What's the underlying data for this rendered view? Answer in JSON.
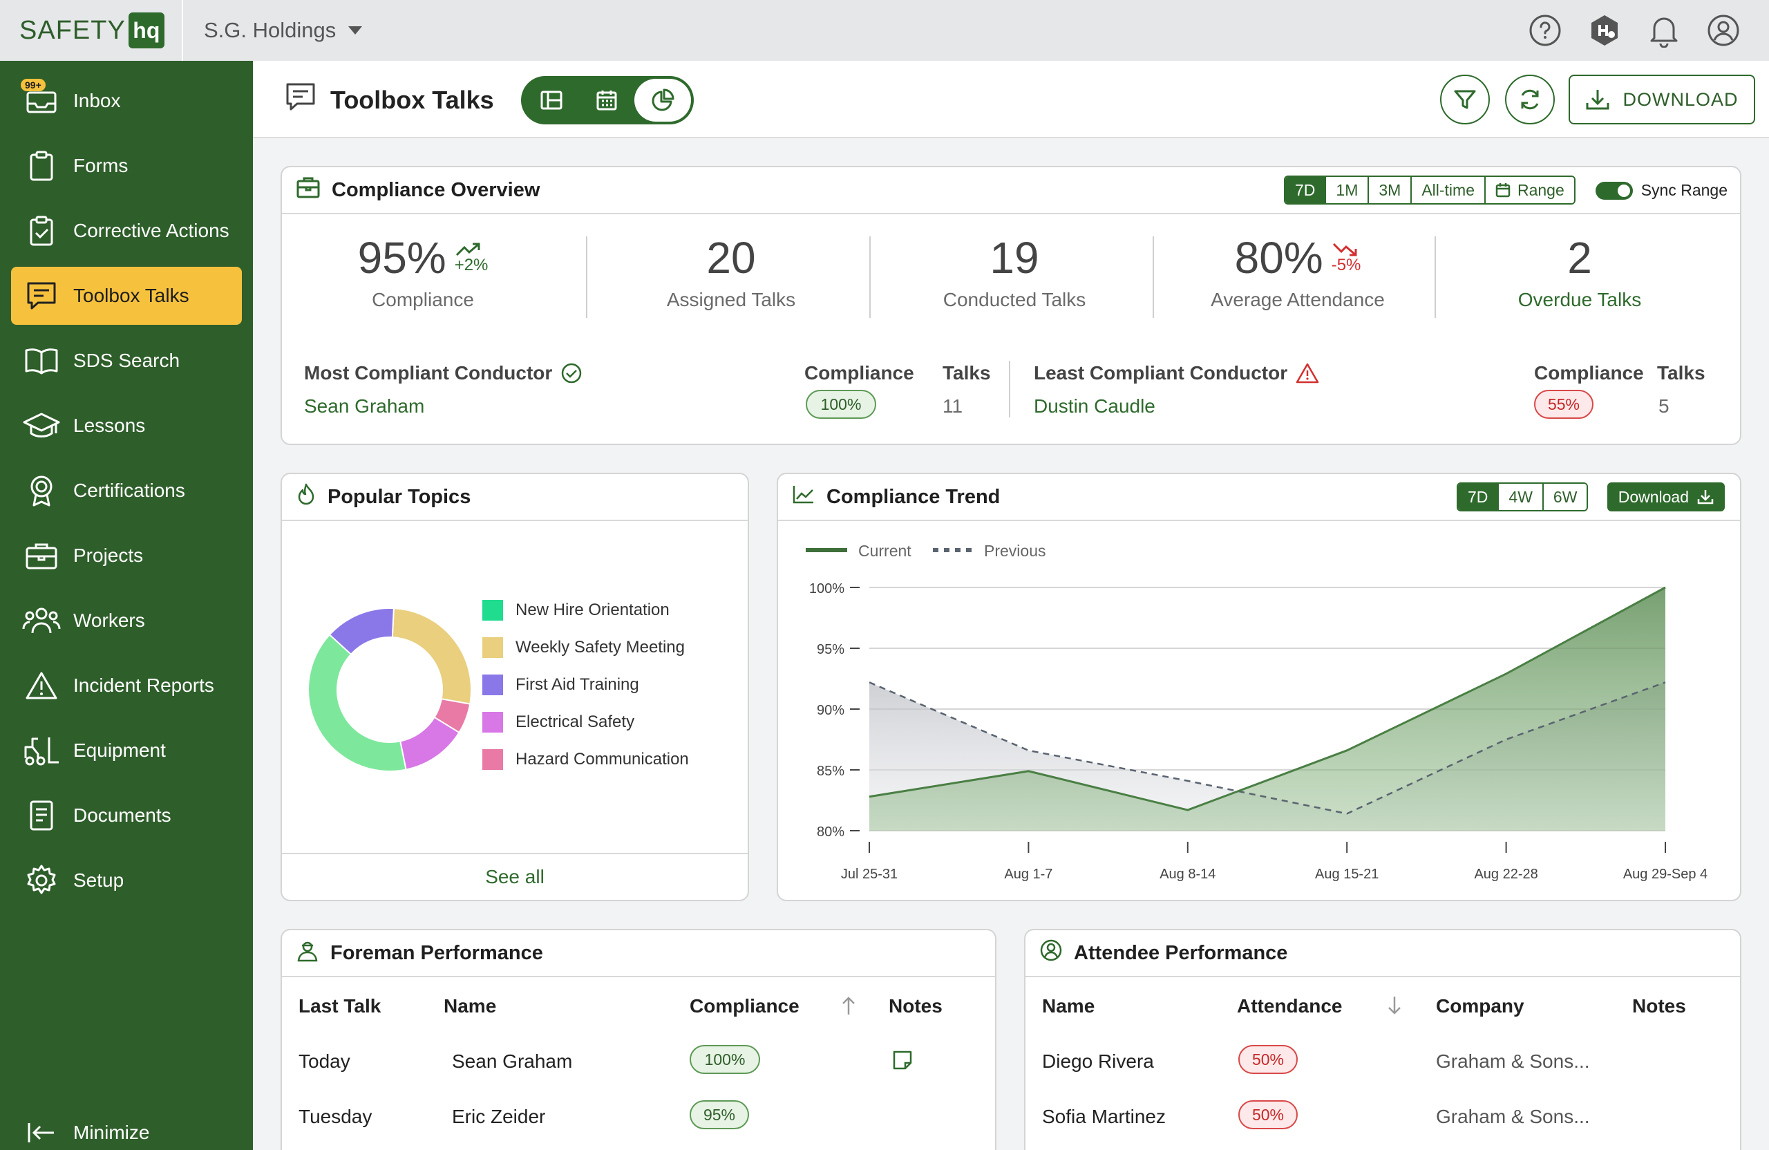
{
  "brand": {
    "logo_text": "SAFETY",
    "logo_mark": "hq"
  },
  "org": {
    "name": "S.G. Holdings"
  },
  "top_icons": [
    "help-icon",
    "hex-logo-icon",
    "bell-icon",
    "user-icon"
  ],
  "sidebar": {
    "inbox_badge": "99+",
    "items": [
      {
        "label": "Inbox",
        "icon": "inbox-icon"
      },
      {
        "label": "Forms",
        "icon": "clipboard-icon"
      },
      {
        "label": "Corrective Actions",
        "icon": "clipboard-check-icon"
      },
      {
        "label": "Toolbox Talks",
        "icon": "chat-icon",
        "active": true
      },
      {
        "label": "SDS Search",
        "icon": "book-icon"
      },
      {
        "label": "Lessons",
        "icon": "graduation-cap-icon"
      },
      {
        "label": "Certifications",
        "icon": "award-icon"
      },
      {
        "label": "Projects",
        "icon": "briefcase-icon"
      },
      {
        "label": "Workers",
        "icon": "people-icon"
      },
      {
        "label": "Incident Reports",
        "icon": "warning-icon"
      },
      {
        "label": "Equipment",
        "icon": "forklift-icon"
      },
      {
        "label": "Documents",
        "icon": "document-icon"
      },
      {
        "label": "Setup",
        "icon": "gear-icon"
      }
    ],
    "minimize_label": "Minimize"
  },
  "page": {
    "title": "Toolbox Talks",
    "download_label": "DOWNLOAD"
  },
  "compliance_overview": {
    "title": "Compliance Overview",
    "ranges": [
      "7D",
      "1M",
      "3M",
      "All-time",
      "Range"
    ],
    "active_range": "7D",
    "sync_label": "Sync Range",
    "kpis": [
      {
        "value": "95%",
        "delta": "+2%",
        "trend": "up",
        "label": "Compliance"
      },
      {
        "value": "20",
        "label": "Assigned Talks"
      },
      {
        "value": "19",
        "label": "Conducted Talks"
      },
      {
        "value": "80%",
        "delta": "-5%",
        "trend": "down",
        "label": "Average Attendance"
      },
      {
        "value": "2",
        "label": "Overdue Talks"
      }
    ],
    "most": {
      "label": "Most Compliant Conductor",
      "name": "Sean Graham",
      "compliance_label": "Compliance",
      "compliance": "100%",
      "talks_label": "Talks",
      "talks": "11"
    },
    "least": {
      "label": "Least Compliant Conductor",
      "name": "Dustin Caudle",
      "compliance_label": "Compliance",
      "compliance": "55%",
      "talks_label": "Talks",
      "talks": "5"
    }
  },
  "popular_topics": {
    "title": "Popular Topics",
    "see_all": "See all",
    "legend": [
      {
        "label": "New Hire Orientation",
        "color": "#1fdc8f"
      },
      {
        "label": "Weekly Safety Meeting",
        "color": "#e9cf7e"
      },
      {
        "label": "First Aid Training",
        "color": "#8a78e8"
      },
      {
        "label": "Electrical Safety",
        "color": "#d877e6"
      },
      {
        "label": "Hazard Communication",
        "color": "#e97aa6"
      }
    ],
    "donut_segments": [
      {
        "color": "#e9cf7e",
        "fraction": 0.27
      },
      {
        "color": "#e97aa6",
        "fraction": 0.06
      },
      {
        "color": "#d877e6",
        "fraction": 0.13
      },
      {
        "color": "#7de89b",
        "fraction": 0.4
      },
      {
        "color": "#8a78e8",
        "fraction": 0.14
      }
    ]
  },
  "compliance_trend": {
    "title": "Compliance Trend",
    "ranges": [
      "7D",
      "4W",
      "6W"
    ],
    "active_range": "7D",
    "download_label": "Download",
    "legend_current": "Current",
    "legend_previous": "Previous"
  },
  "chart_data": {
    "type": "area",
    "categories": [
      "Jul 25-31",
      "Aug 1-7",
      "Aug 8-14",
      "Aug 15-21",
      "Aug 22-28",
      "Aug 29-Sep 4"
    ],
    "series": [
      {
        "name": "Current",
        "values": [
          82.8,
          84.9,
          81.7,
          86.6,
          92.9,
          100
        ],
        "color": "#4a7f44"
      },
      {
        "name": "Previous",
        "values": [
          92.2,
          86.6,
          84.1,
          81.4,
          87.5,
          92.2
        ],
        "color": "#5a6470"
      }
    ],
    "yticks": [
      "100%",
      "95%",
      "90%",
      "85%",
      "80%"
    ],
    "ylim": [
      80,
      100
    ],
    "grid": true,
    "legend": "top-left"
  },
  "foreman": {
    "title": "Foreman Performance",
    "headers": {
      "last_talk": "Last Talk",
      "name": "Name",
      "compliance": "Compliance",
      "notes": "Notes"
    },
    "rows": [
      {
        "last_talk": "Today",
        "name": "Sean Graham",
        "compliance": "100%",
        "has_note": true
      },
      {
        "last_talk": "Tuesday",
        "name": "Eric Zeider",
        "compliance": "95%",
        "has_note": false
      }
    ]
  },
  "attendee": {
    "title": "Attendee Performance",
    "headers": {
      "name": "Name",
      "attendance": "Attendance",
      "company": "Company",
      "notes": "Notes"
    },
    "rows": [
      {
        "name": "Diego Rivera",
        "attendance": "50%",
        "company": "Graham & Sons..."
      },
      {
        "name": "Sofia Martinez",
        "attendance": "50%",
        "company": "Graham & Sons..."
      }
    ]
  }
}
